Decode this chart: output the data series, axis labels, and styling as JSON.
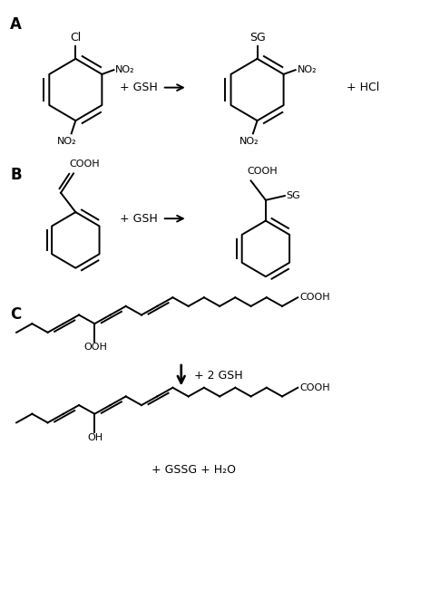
{
  "fig_width": 4.74,
  "fig_height": 6.72,
  "dpi": 100,
  "bg_color": "#ffffff",
  "line_color": "#000000",
  "lw": 1.4,
  "section_A_label": "A",
  "section_B_label": "B",
  "section_C_label": "C",
  "plus_gsh": "+ GSH",
  "plus_2gsh": "+ 2 GSH",
  "hcl": "+ HCl",
  "cl": "Cl",
  "no2": "NO₂",
  "sg": "SG",
  "cooh": "COOH",
  "ooh": "OOH",
  "oh": "OH",
  "gssg_h2o": "+ GSSG + H₂O",
  "fontsize_label": 12,
  "fontsize_chem": 9,
  "fontsize_sub": 8
}
